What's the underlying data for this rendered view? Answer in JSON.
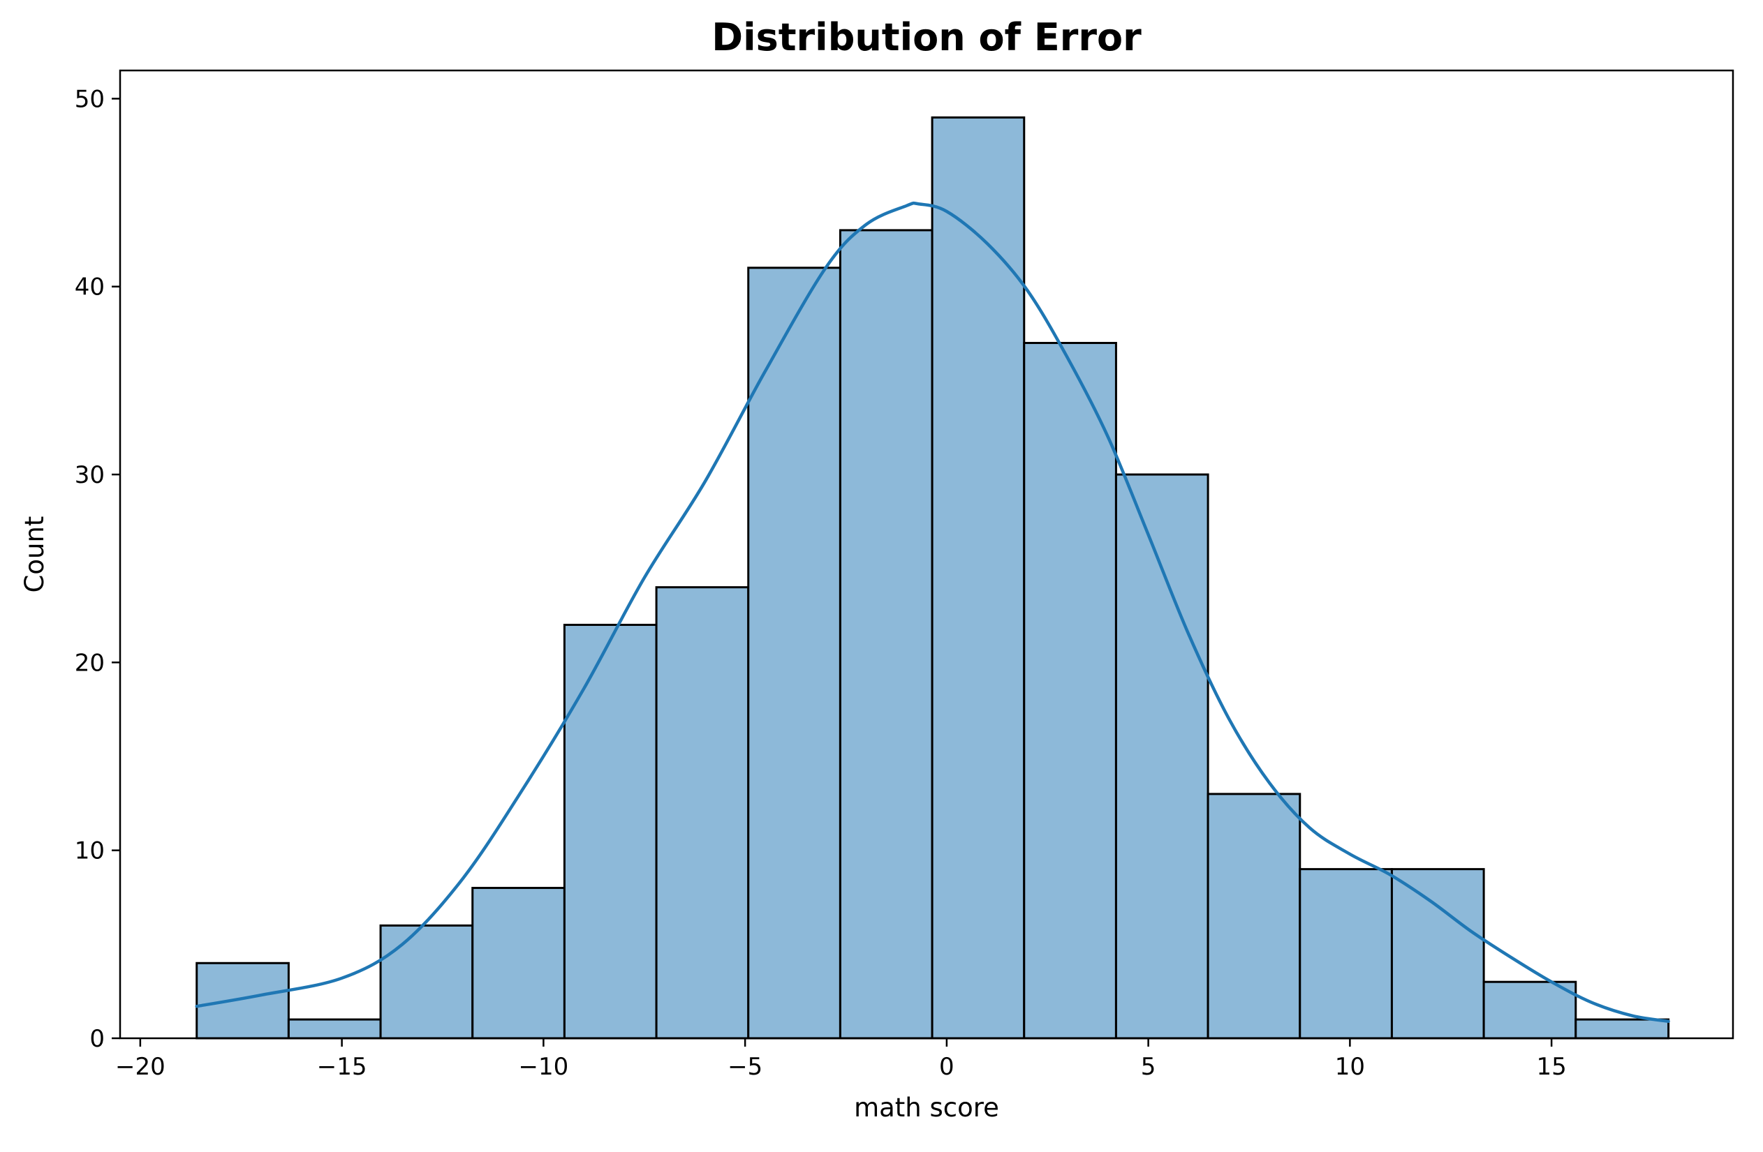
{
  "chart_data": {
    "type": "bar",
    "title": "Distribution of Error",
    "xlabel": "math score",
    "ylabel": "Count",
    "xlim": [
      -20.5,
      19.5
    ],
    "ylim": [
      0,
      51.5
    ],
    "xticks": [
      -20,
      -15,
      -10,
      -5,
      0,
      5,
      10,
      15
    ],
    "xtick_labels": [
      "−20",
      "−15",
      "−10",
      "−5",
      "0",
      "5",
      "10",
      "15"
    ],
    "yticks": [
      0,
      10,
      20,
      30,
      40,
      50
    ],
    "ytick_labels": [
      "0",
      "10",
      "20",
      "30",
      "40",
      "50"
    ],
    "grid": false,
    "legend": "none",
    "bin_edges": [
      -18.6,
      -16.32,
      -14.04,
      -11.76,
      -9.48,
      -7.2,
      -4.92,
      -2.64,
      -0.36,
      1.92,
      4.2,
      6.48,
      8.76,
      11.04,
      13.32,
      15.6,
      17.9
    ],
    "values": [
      4,
      1,
      6,
      8,
      22,
      24,
      41,
      43,
      49,
      37,
      30,
      13,
      9,
      9,
      3,
      1
    ],
    "kde": {
      "x": [
        -18.6,
        -17,
        -15,
        -13.5,
        -12,
        -10.5,
        -9,
        -7.5,
        -6,
        -4.5,
        -3,
        -2,
        -1,
        -0.7,
        0,
        1,
        2,
        3,
        4,
        5,
        6,
        7,
        8,
        9,
        10,
        11,
        12,
        13,
        14,
        15,
        16,
        17,
        17.9
      ],
      "y": [
        1.7,
        2.3,
        3.2,
        5.0,
        8.5,
        13.3,
        18.6,
        24.5,
        29.6,
        35.5,
        41.0,
        43.3,
        44.3,
        44.4,
        44.0,
        42.3,
        39.8,
        36.2,
        32.0,
        26.8,
        21.5,
        17.0,
        13.6,
        11.2,
        9.8,
        8.7,
        7.3,
        5.7,
        4.3,
        3.0,
        1.9,
        1.2,
        0.9
      ]
    },
    "colors": {
      "bar_fill": "#8db9d9",
      "bar_edge": "#000000",
      "kde_line": "#1f77b4"
    }
  }
}
